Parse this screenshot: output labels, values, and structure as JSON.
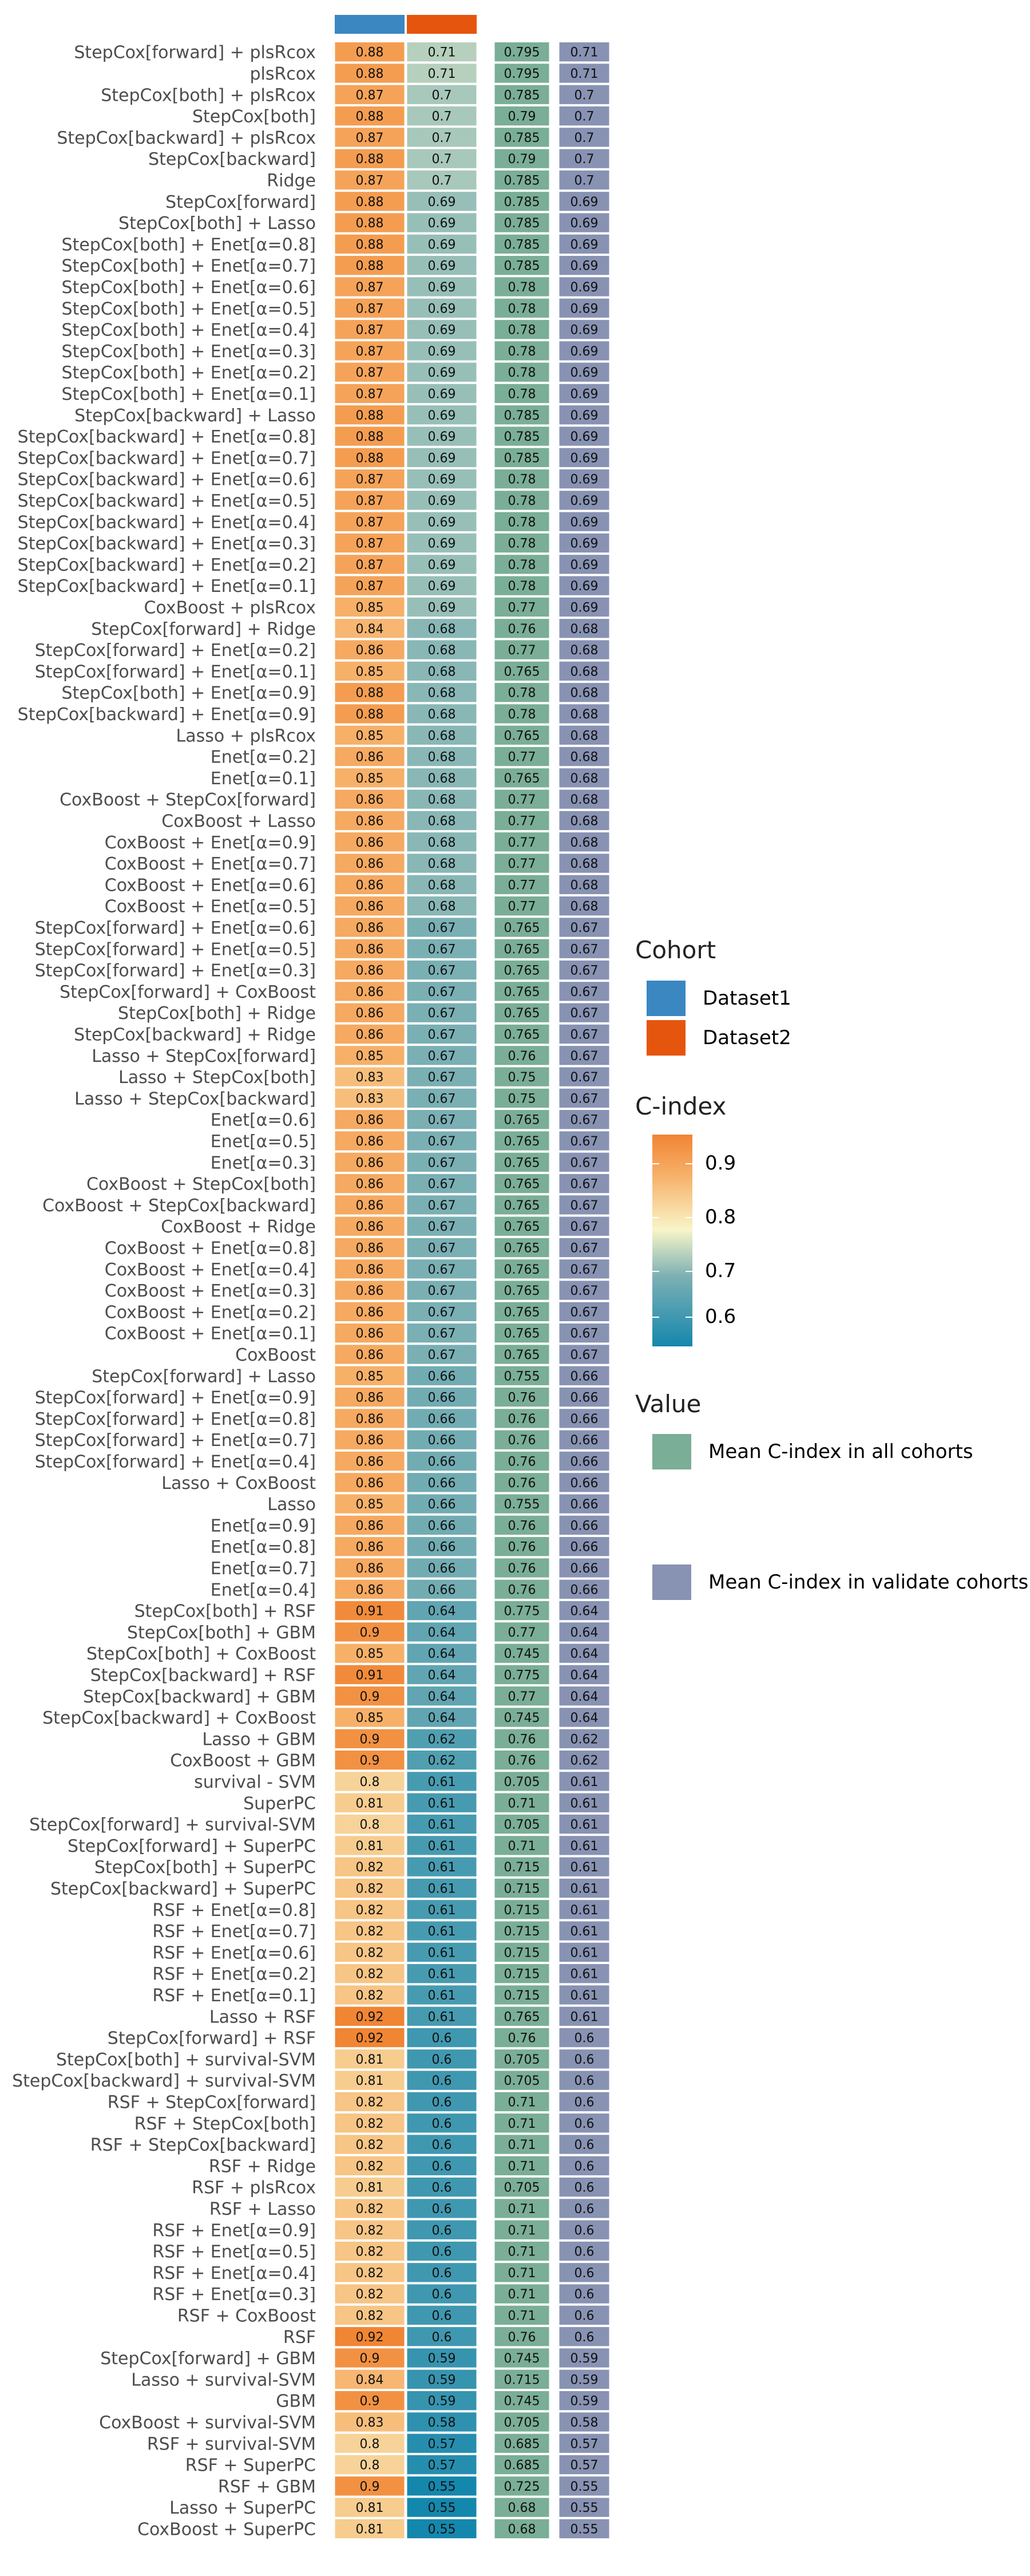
{
  "chart_data": {
    "type": "heatmap",
    "columns": [
      "Dataset1",
      "Dataset2",
      "Mean C-index in all cohorts",
      "Mean C-index in validate cohorts"
    ],
    "colors": {
      "Dataset1": "#3a87c2",
      "Dataset2": "#e6550d",
      "mean_all": "#7aae96",
      "mean_validate": "#8892b3",
      "scale_low": "#1487ad",
      "scale_mid": "#f8f5c8",
      "scale_high": "#f08533"
    },
    "color_scale": {
      "title": "C-index",
      "min": 0.55,
      "max": 0.92,
      "ticks": [
        "0.9",
        "0.8",
        "0.7",
        "0.6"
      ]
    },
    "legend": {
      "cohort_title": "Cohort",
      "cohort_items": [
        "Dataset1",
        "Dataset2"
      ],
      "value_title": "Value",
      "value_items": [
        "Mean C-index in all cohorts",
        "Mean C-index in validate cohorts"
      ]
    },
    "rows": [
      {
        "model": "StepCox[forward] + plsRcox",
        "d1": "0.88",
        "d2": "0.71",
        "all": "0.795",
        "val": "0.71"
      },
      {
        "model": "plsRcox",
        "d1": "0.88",
        "d2": "0.71",
        "all": "0.795",
        "val": "0.71"
      },
      {
        "model": "StepCox[both] + plsRcox",
        "d1": "0.87",
        "d2": "0.7",
        "all": "0.785",
        "val": "0.7"
      },
      {
        "model": "StepCox[both]",
        "d1": "0.88",
        "d2": "0.7",
        "all": "0.79",
        "val": "0.7"
      },
      {
        "model": "StepCox[backward] + plsRcox",
        "d1": "0.87",
        "d2": "0.7",
        "all": "0.785",
        "val": "0.7"
      },
      {
        "model": "StepCox[backward]",
        "d1": "0.88",
        "d2": "0.7",
        "all": "0.79",
        "val": "0.7"
      },
      {
        "model": "Ridge",
        "d1": "0.87",
        "d2": "0.7",
        "all": "0.785",
        "val": "0.7"
      },
      {
        "model": "StepCox[forward]",
        "d1": "0.88",
        "d2": "0.69",
        "all": "0.785",
        "val": "0.69"
      },
      {
        "model": "StepCox[both] + Lasso",
        "d1": "0.88",
        "d2": "0.69",
        "all": "0.785",
        "val": "0.69"
      },
      {
        "model": "StepCox[both] + Enet[α=0.8]",
        "d1": "0.88",
        "d2": "0.69",
        "all": "0.785",
        "val": "0.69"
      },
      {
        "model": "StepCox[both] + Enet[α=0.7]",
        "d1": "0.88",
        "d2": "0.69",
        "all": "0.785",
        "val": "0.69"
      },
      {
        "model": "StepCox[both] + Enet[α=0.6]",
        "d1": "0.87",
        "d2": "0.69",
        "all": "0.78",
        "val": "0.69"
      },
      {
        "model": "StepCox[both] + Enet[α=0.5]",
        "d1": "0.87",
        "d2": "0.69",
        "all": "0.78",
        "val": "0.69"
      },
      {
        "model": "StepCox[both] + Enet[α=0.4]",
        "d1": "0.87",
        "d2": "0.69",
        "all": "0.78",
        "val": "0.69"
      },
      {
        "model": "StepCox[both] + Enet[α=0.3]",
        "d1": "0.87",
        "d2": "0.69",
        "all": "0.78",
        "val": "0.69"
      },
      {
        "model": "StepCox[both] + Enet[α=0.2]",
        "d1": "0.87",
        "d2": "0.69",
        "all": "0.78",
        "val": "0.69"
      },
      {
        "model": "StepCox[both] + Enet[α=0.1]",
        "d1": "0.87",
        "d2": "0.69",
        "all": "0.78",
        "val": "0.69"
      },
      {
        "model": "StepCox[backward] + Lasso",
        "d1": "0.88",
        "d2": "0.69",
        "all": "0.785",
        "val": "0.69"
      },
      {
        "model": "StepCox[backward] + Enet[α=0.8]",
        "d1": "0.88",
        "d2": "0.69",
        "all": "0.785",
        "val": "0.69"
      },
      {
        "model": "StepCox[backward] + Enet[α=0.7]",
        "d1": "0.88",
        "d2": "0.69",
        "all": "0.785",
        "val": "0.69"
      },
      {
        "model": "StepCox[backward] + Enet[α=0.6]",
        "d1": "0.87",
        "d2": "0.69",
        "all": "0.78",
        "val": "0.69"
      },
      {
        "model": "StepCox[backward] + Enet[α=0.5]",
        "d1": "0.87",
        "d2": "0.69",
        "all": "0.78",
        "val": "0.69"
      },
      {
        "model": "StepCox[backward] + Enet[α=0.4]",
        "d1": "0.87",
        "d2": "0.69",
        "all": "0.78",
        "val": "0.69"
      },
      {
        "model": "StepCox[backward] + Enet[α=0.3]",
        "d1": "0.87",
        "d2": "0.69",
        "all": "0.78",
        "val": "0.69"
      },
      {
        "model": "StepCox[backward] + Enet[α=0.2]",
        "d1": "0.87",
        "d2": "0.69",
        "all": "0.78",
        "val": "0.69"
      },
      {
        "model": "StepCox[backward] + Enet[α=0.1]",
        "d1": "0.87",
        "d2": "0.69",
        "all": "0.78",
        "val": "0.69"
      },
      {
        "model": "CoxBoost + plsRcox",
        "d1": "0.85",
        "d2": "0.69",
        "all": "0.77",
        "val": "0.69"
      },
      {
        "model": "StepCox[forward] + Ridge",
        "d1": "0.84",
        "d2": "0.68",
        "all": "0.76",
        "val": "0.68"
      },
      {
        "model": "StepCox[forward] + Enet[α=0.2]",
        "d1": "0.86",
        "d2": "0.68",
        "all": "0.77",
        "val": "0.68"
      },
      {
        "model": "StepCox[forward] + Enet[α=0.1]",
        "d1": "0.85",
        "d2": "0.68",
        "all": "0.765",
        "val": "0.68"
      },
      {
        "model": "StepCox[both] + Enet[α=0.9]",
        "d1": "0.88",
        "d2": "0.68",
        "all": "0.78",
        "val": "0.68"
      },
      {
        "model": "StepCox[backward] + Enet[α=0.9]",
        "d1": "0.88",
        "d2": "0.68",
        "all": "0.78",
        "val": "0.68"
      },
      {
        "model": "Lasso + plsRcox",
        "d1": "0.85",
        "d2": "0.68",
        "all": "0.765",
        "val": "0.68"
      },
      {
        "model": "Enet[α=0.2]",
        "d1": "0.86",
        "d2": "0.68",
        "all": "0.77",
        "val": "0.68"
      },
      {
        "model": "Enet[α=0.1]",
        "d1": "0.85",
        "d2": "0.68",
        "all": "0.765",
        "val": "0.68"
      },
      {
        "model": "CoxBoost + StepCox[forward]",
        "d1": "0.86",
        "d2": "0.68",
        "all": "0.77",
        "val": "0.68"
      },
      {
        "model": "CoxBoost + Lasso",
        "d1": "0.86",
        "d2": "0.68",
        "all": "0.77",
        "val": "0.68"
      },
      {
        "model": "CoxBoost + Enet[α=0.9]",
        "d1": "0.86",
        "d2": "0.68",
        "all": "0.77",
        "val": "0.68"
      },
      {
        "model": "CoxBoost + Enet[α=0.7]",
        "d1": "0.86",
        "d2": "0.68",
        "all": "0.77",
        "val": "0.68"
      },
      {
        "model": "CoxBoost + Enet[α=0.6]",
        "d1": "0.86",
        "d2": "0.68",
        "all": "0.77",
        "val": "0.68"
      },
      {
        "model": "CoxBoost + Enet[α=0.5]",
        "d1": "0.86",
        "d2": "0.68",
        "all": "0.77",
        "val": "0.68"
      },
      {
        "model": "StepCox[forward] + Enet[α=0.6]",
        "d1": "0.86",
        "d2": "0.67",
        "all": "0.765",
        "val": "0.67"
      },
      {
        "model": "StepCox[forward] + Enet[α=0.5]",
        "d1": "0.86",
        "d2": "0.67",
        "all": "0.765",
        "val": "0.67"
      },
      {
        "model": "StepCox[forward] + Enet[α=0.3]",
        "d1": "0.86",
        "d2": "0.67",
        "all": "0.765",
        "val": "0.67"
      },
      {
        "model": "StepCox[forward] + CoxBoost",
        "d1": "0.86",
        "d2": "0.67",
        "all": "0.765",
        "val": "0.67"
      },
      {
        "model": "StepCox[both] + Ridge",
        "d1": "0.86",
        "d2": "0.67",
        "all": "0.765",
        "val": "0.67"
      },
      {
        "model": "StepCox[backward] + Ridge",
        "d1": "0.86",
        "d2": "0.67",
        "all": "0.765",
        "val": "0.67"
      },
      {
        "model": "Lasso + StepCox[forward]",
        "d1": "0.85",
        "d2": "0.67",
        "all": "0.76",
        "val": "0.67"
      },
      {
        "model": "Lasso + StepCox[both]",
        "d1": "0.83",
        "d2": "0.67",
        "all": "0.75",
        "val": "0.67"
      },
      {
        "model": "Lasso + StepCox[backward]",
        "d1": "0.83",
        "d2": "0.67",
        "all": "0.75",
        "val": "0.67"
      },
      {
        "model": "Enet[α=0.6]",
        "d1": "0.86",
        "d2": "0.67",
        "all": "0.765",
        "val": "0.67"
      },
      {
        "model": "Enet[α=0.5]",
        "d1": "0.86",
        "d2": "0.67",
        "all": "0.765",
        "val": "0.67"
      },
      {
        "model": "Enet[α=0.3]",
        "d1": "0.86",
        "d2": "0.67",
        "all": "0.765",
        "val": "0.67"
      },
      {
        "model": "CoxBoost + StepCox[both]",
        "d1": "0.86",
        "d2": "0.67",
        "all": "0.765",
        "val": "0.67"
      },
      {
        "model": "CoxBoost + StepCox[backward]",
        "d1": "0.86",
        "d2": "0.67",
        "all": "0.765",
        "val": "0.67"
      },
      {
        "model": "CoxBoost + Ridge",
        "d1": "0.86",
        "d2": "0.67",
        "all": "0.765",
        "val": "0.67"
      },
      {
        "model": "CoxBoost + Enet[α=0.8]",
        "d1": "0.86",
        "d2": "0.67",
        "all": "0.765",
        "val": "0.67"
      },
      {
        "model": "CoxBoost + Enet[α=0.4]",
        "d1": "0.86",
        "d2": "0.67",
        "all": "0.765",
        "val": "0.67"
      },
      {
        "model": "CoxBoost + Enet[α=0.3]",
        "d1": "0.86",
        "d2": "0.67",
        "all": "0.765",
        "val": "0.67"
      },
      {
        "model": "CoxBoost + Enet[α=0.2]",
        "d1": "0.86",
        "d2": "0.67",
        "all": "0.765",
        "val": "0.67"
      },
      {
        "model": "CoxBoost + Enet[α=0.1]",
        "d1": "0.86",
        "d2": "0.67",
        "all": "0.765",
        "val": "0.67"
      },
      {
        "model": "CoxBoost",
        "d1": "0.86",
        "d2": "0.67",
        "all": "0.765",
        "val": "0.67"
      },
      {
        "model": "StepCox[forward] + Lasso",
        "d1": "0.85",
        "d2": "0.66",
        "all": "0.755",
        "val": "0.66"
      },
      {
        "model": "StepCox[forward] + Enet[α=0.9]",
        "d1": "0.86",
        "d2": "0.66",
        "all": "0.76",
        "val": "0.66"
      },
      {
        "model": "StepCox[forward] + Enet[α=0.8]",
        "d1": "0.86",
        "d2": "0.66",
        "all": "0.76",
        "val": "0.66"
      },
      {
        "model": "StepCox[forward] + Enet[α=0.7]",
        "d1": "0.86",
        "d2": "0.66",
        "all": "0.76",
        "val": "0.66"
      },
      {
        "model": "StepCox[forward] + Enet[α=0.4]",
        "d1": "0.86",
        "d2": "0.66",
        "all": "0.76",
        "val": "0.66"
      },
      {
        "model": "Lasso + CoxBoost",
        "d1": "0.86",
        "d2": "0.66",
        "all": "0.76",
        "val": "0.66"
      },
      {
        "model": "Lasso",
        "d1": "0.85",
        "d2": "0.66",
        "all": "0.755",
        "val": "0.66"
      },
      {
        "model": "Enet[α=0.9]",
        "d1": "0.86",
        "d2": "0.66",
        "all": "0.76",
        "val": "0.66"
      },
      {
        "model": "Enet[α=0.8]",
        "d1": "0.86",
        "d2": "0.66",
        "all": "0.76",
        "val": "0.66"
      },
      {
        "model": "Enet[α=0.7]",
        "d1": "0.86",
        "d2": "0.66",
        "all": "0.76",
        "val": "0.66"
      },
      {
        "model": "Enet[α=0.4]",
        "d1": "0.86",
        "d2": "0.66",
        "all": "0.76",
        "val": "0.66"
      },
      {
        "model": "StepCox[both] + RSF",
        "d1": "0.91",
        "d2": "0.64",
        "all": "0.775",
        "val": "0.64"
      },
      {
        "model": "StepCox[both] + GBM",
        "d1": "0.9",
        "d2": "0.64",
        "all": "0.77",
        "val": "0.64"
      },
      {
        "model": "StepCox[both] + CoxBoost",
        "d1": "0.85",
        "d2": "0.64",
        "all": "0.745",
        "val": "0.64"
      },
      {
        "model": "StepCox[backward] + RSF",
        "d1": "0.91",
        "d2": "0.64",
        "all": "0.775",
        "val": "0.64"
      },
      {
        "model": "StepCox[backward] + GBM",
        "d1": "0.9",
        "d2": "0.64",
        "all": "0.77",
        "val": "0.64"
      },
      {
        "model": "StepCox[backward] + CoxBoost",
        "d1": "0.85",
        "d2": "0.64",
        "all": "0.745",
        "val": "0.64"
      },
      {
        "model": "Lasso + GBM",
        "d1": "0.9",
        "d2": "0.62",
        "all": "0.76",
        "val": "0.62"
      },
      {
        "model": "CoxBoost + GBM",
        "d1": "0.9",
        "d2": "0.62",
        "all": "0.76",
        "val": "0.62"
      },
      {
        "model": "survival - SVM",
        "d1": "0.8",
        "d2": "0.61",
        "all": "0.705",
        "val": "0.61"
      },
      {
        "model": "SuperPC",
        "d1": "0.81",
        "d2": "0.61",
        "all": "0.71",
        "val": "0.61"
      },
      {
        "model": "StepCox[forward] + survival-SVM",
        "d1": "0.8",
        "d2": "0.61",
        "all": "0.705",
        "val": "0.61"
      },
      {
        "model": "StepCox[forward] + SuperPC",
        "d1": "0.81",
        "d2": "0.61",
        "all": "0.71",
        "val": "0.61"
      },
      {
        "model": "StepCox[both] + SuperPC",
        "d1": "0.82",
        "d2": "0.61",
        "all": "0.715",
        "val": "0.61"
      },
      {
        "model": "StepCox[backward] + SuperPC",
        "d1": "0.82",
        "d2": "0.61",
        "all": "0.715",
        "val": "0.61"
      },
      {
        "model": "RSF + Enet[α=0.8]",
        "d1": "0.82",
        "d2": "0.61",
        "all": "0.715",
        "val": "0.61"
      },
      {
        "model": "RSF + Enet[α=0.7]",
        "d1": "0.82",
        "d2": "0.61",
        "all": "0.715",
        "val": "0.61"
      },
      {
        "model": "RSF + Enet[α=0.6]",
        "d1": "0.82",
        "d2": "0.61",
        "all": "0.715",
        "val": "0.61"
      },
      {
        "model": "RSF + Enet[α=0.2]",
        "d1": "0.82",
        "d2": "0.61",
        "all": "0.715",
        "val": "0.61"
      },
      {
        "model": "RSF + Enet[α=0.1]",
        "d1": "0.82",
        "d2": "0.61",
        "all": "0.715",
        "val": "0.61"
      },
      {
        "model": "Lasso + RSF",
        "d1": "0.92",
        "d2": "0.61",
        "all": "0.765",
        "val": "0.61"
      },
      {
        "model": "StepCox[forward] + RSF",
        "d1": "0.92",
        "d2": "0.6",
        "all": "0.76",
        "val": "0.6"
      },
      {
        "model": "StepCox[both] + survival-SVM",
        "d1": "0.81",
        "d2": "0.6",
        "all": "0.705",
        "val": "0.6"
      },
      {
        "model": "StepCox[backward] + survival-SVM",
        "d1": "0.81",
        "d2": "0.6",
        "all": "0.705",
        "val": "0.6"
      },
      {
        "model": "RSF + StepCox[forward]",
        "d1": "0.82",
        "d2": "0.6",
        "all": "0.71",
        "val": "0.6"
      },
      {
        "model": "RSF + StepCox[both]",
        "d1": "0.82",
        "d2": "0.6",
        "all": "0.71",
        "val": "0.6"
      },
      {
        "model": "RSF + StepCox[backward]",
        "d1": "0.82",
        "d2": "0.6",
        "all": "0.71",
        "val": "0.6"
      },
      {
        "model": "RSF + Ridge",
        "d1": "0.82",
        "d2": "0.6",
        "all": "0.71",
        "val": "0.6"
      },
      {
        "model": "RSF + plsRcox",
        "d1": "0.81",
        "d2": "0.6",
        "all": "0.705",
        "val": "0.6"
      },
      {
        "model": "RSF + Lasso",
        "d1": "0.82",
        "d2": "0.6",
        "all": "0.71",
        "val": "0.6"
      },
      {
        "model": "RSF + Enet[α=0.9]",
        "d1": "0.82",
        "d2": "0.6",
        "all": "0.71",
        "val": "0.6"
      },
      {
        "model": "RSF + Enet[α=0.5]",
        "d1": "0.82",
        "d2": "0.6",
        "all": "0.71",
        "val": "0.6"
      },
      {
        "model": "RSF + Enet[α=0.4]",
        "d1": "0.82",
        "d2": "0.6",
        "all": "0.71",
        "val": "0.6"
      },
      {
        "model": "RSF + Enet[α=0.3]",
        "d1": "0.82",
        "d2": "0.6",
        "all": "0.71",
        "val": "0.6"
      },
      {
        "model": "RSF + CoxBoost",
        "d1": "0.82",
        "d2": "0.6",
        "all": "0.71",
        "val": "0.6"
      },
      {
        "model": "RSF",
        "d1": "0.92",
        "d2": "0.6",
        "all": "0.76",
        "val": "0.6"
      },
      {
        "model": "StepCox[forward] + GBM",
        "d1": "0.9",
        "d2": "0.59",
        "all": "0.745",
        "val": "0.59"
      },
      {
        "model": "Lasso + survival-SVM",
        "d1": "0.84",
        "d2": "0.59",
        "all": "0.715",
        "val": "0.59"
      },
      {
        "model": "GBM",
        "d1": "0.9",
        "d2": "0.59",
        "all": "0.745",
        "val": "0.59"
      },
      {
        "model": "CoxBoost + survival-SVM",
        "d1": "0.83",
        "d2": "0.58",
        "all": "0.705",
        "val": "0.58"
      },
      {
        "model": "RSF + survival-SVM",
        "d1": "0.8",
        "d2": "0.57",
        "all": "0.685",
        "val": "0.57"
      },
      {
        "model": "RSF + SuperPC",
        "d1": "0.8",
        "d2": "0.57",
        "all": "0.685",
        "val": "0.57"
      },
      {
        "model": "RSF + GBM",
        "d1": "0.9",
        "d2": "0.55",
        "all": "0.725",
        "val": "0.55"
      },
      {
        "model": "Lasso + SuperPC",
        "d1": "0.81",
        "d2": "0.55",
        "all": "0.68",
        "val": "0.55"
      },
      {
        "model": "CoxBoost + SuperPC",
        "d1": "0.81",
        "d2": "0.55",
        "all": "0.68",
        "val": "0.55"
      }
    ]
  }
}
